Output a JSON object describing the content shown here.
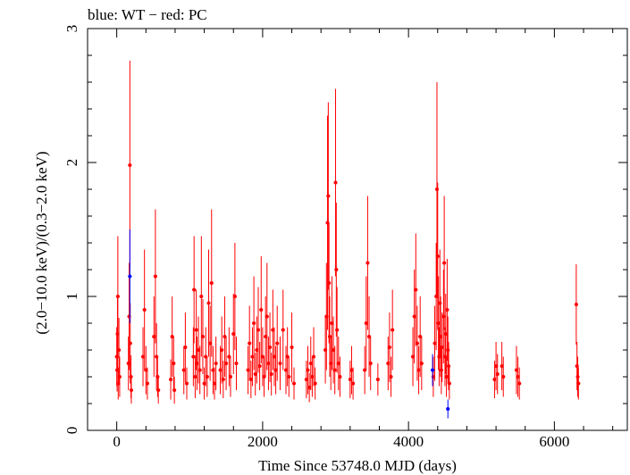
{
  "chart_data": {
    "type": "scatter",
    "title": "blue: WT − red: PC",
    "xlabel": "Time Since 53748.0 MJD (days)",
    "ylabel": "(2.0−10.0 keV)/(0.3−2.0 keV)",
    "xlim": [
      -400,
      7000
    ],
    "ylim": [
      0,
      3
    ],
    "xticks": [
      0,
      2000,
      4000,
      6000
    ],
    "xtick_labels": [
      "0",
      "2000",
      "4000",
      "6000"
    ],
    "yticks": [
      0,
      1,
      2,
      3
    ],
    "ytick_labels": [
      "0",
      "1",
      "2",
      "3"
    ],
    "grid": false,
    "legend": "none",
    "series": [
      {
        "name": "WT",
        "color": "#0000ff",
        "points": [
          [
            180,
            1.15,
            0.35
          ],
          [
            4540,
            0.16,
            0.07
          ],
          [
            4330,
            0.45,
            0.12
          ]
        ]
      },
      {
        "name": "PC",
        "color": "#ff0000",
        "points": [
          [
            0,
            0.55,
            0.22
          ],
          [
            5,
            0.45,
            0.16
          ],
          [
            10,
            0.72,
            0.28
          ],
          [
            15,
            1.0,
            0.45
          ],
          [
            20,
            0.35,
            0.12
          ],
          [
            30,
            0.6,
            0.24
          ],
          [
            40,
            0.4,
            0.15
          ],
          [
            160,
            0.5,
            0.2
          ],
          [
            170,
            0.85,
            0.4
          ],
          [
            180,
            1.98,
            0.78
          ],
          [
            185,
            0.65,
            0.3
          ],
          [
            195,
            0.4,
            0.16
          ],
          [
            200,
            0.3,
            0.1
          ],
          [
            360,
            0.55,
            0.22
          ],
          [
            380,
            0.9,
            0.45
          ],
          [
            400,
            0.45,
            0.18
          ],
          [
            420,
            0.35,
            0.12
          ],
          [
            510,
            0.7,
            0.3
          ],
          [
            530,
            1.15,
            0.5
          ],
          [
            545,
            0.55,
            0.25
          ],
          [
            560,
            0.4,
            0.15
          ],
          [
            570,
            0.3,
            0.1
          ],
          [
            740,
            0.38,
            0.15
          ],
          [
            760,
            0.7,
            0.3
          ],
          [
            780,
            0.5,
            0.2
          ],
          [
            790,
            0.3,
            0.1
          ],
          [
            920,
            0.45,
            0.18
          ],
          [
            940,
            0.62,
            0.26
          ],
          [
            960,
            0.35,
            0.12
          ],
          [
            1050,
            0.55,
            0.22
          ],
          [
            1060,
            1.05,
            0.4
          ],
          [
            1075,
            0.4,
            0.16
          ],
          [
            1090,
            0.75,
            0.3
          ],
          [
            1100,
            0.5,
            0.2
          ],
          [
            1120,
            0.6,
            0.25
          ],
          [
            1140,
            0.45,
            0.18
          ],
          [
            1160,
            1.0,
            0.45
          ],
          [
            1180,
            0.7,
            0.28
          ],
          [
            1200,
            0.35,
            0.12
          ],
          [
            1220,
            0.55,
            0.22
          ],
          [
            1240,
            0.4,
            0.15
          ],
          [
            1260,
            0.95,
            0.4
          ],
          [
            1280,
            0.65,
            0.28
          ],
          [
            1300,
            1.1,
            0.55
          ],
          [
            1320,
            0.45,
            0.18
          ],
          [
            1340,
            0.35,
            0.12
          ],
          [
            1360,
            0.5,
            0.2
          ],
          [
            1420,
            0.45,
            0.18
          ],
          [
            1440,
            0.6,
            0.25
          ],
          [
            1460,
            0.38,
            0.14
          ],
          [
            1480,
            0.7,
            0.3
          ],
          [
            1500,
            0.5,
            0.2
          ],
          [
            1540,
            0.55,
            0.22
          ],
          [
            1560,
            0.4,
            0.15
          ],
          [
            1600,
            0.72,
            0.3
          ],
          [
            1620,
            1.0,
            0.4
          ],
          [
            1640,
            0.5,
            0.2
          ],
          [
            1800,
            0.45,
            0.18
          ],
          [
            1820,
            0.65,
            0.28
          ],
          [
            1840,
            0.38,
            0.14
          ],
          [
            1860,
            0.55,
            0.22
          ],
          [
            1880,
            0.8,
            0.35
          ],
          [
            1900,
            0.42,
            0.16
          ],
          [
            1920,
            0.6,
            0.25
          ],
          [
            1940,
            0.75,
            0.32
          ],
          [
            1960,
            0.48,
            0.18
          ],
          [
            1980,
            0.9,
            0.4
          ],
          [
            2000,
            0.55,
            0.22
          ],
          [
            2020,
            0.4,
            0.15
          ],
          [
            2040,
            0.7,
            0.3
          ],
          [
            2060,
            0.85,
            0.4
          ],
          [
            2080,
            0.5,
            0.2
          ],
          [
            2100,
            0.62,
            0.26
          ],
          [
            2120,
            0.42,
            0.16
          ],
          [
            2140,
            0.75,
            0.3
          ],
          [
            2160,
            0.55,
            0.22
          ],
          [
            2180,
            0.45,
            0.18
          ],
          [
            2200,
            0.65,
            0.28
          ],
          [
            2240,
            0.5,
            0.2
          ],
          [
            2280,
            0.75,
            0.3
          ],
          [
            2320,
            0.45,
            0.18
          ],
          [
            2340,
            0.55,
            0.22
          ],
          [
            2360,
            0.4,
            0.15
          ],
          [
            2400,
            0.62,
            0.26
          ],
          [
            2430,
            0.35,
            0.12
          ],
          [
            2600,
            0.38,
            0.14
          ],
          [
            2620,
            0.45,
            0.18
          ],
          [
            2640,
            0.32,
            0.11
          ],
          [
            2660,
            0.5,
            0.2
          ],
          [
            2680,
            0.4,
            0.15
          ],
          [
            2700,
            0.55,
            0.22
          ],
          [
            2720,
            0.35,
            0.12
          ],
          [
            2860,
            0.6,
            0.25
          ],
          [
            2875,
            0.85,
            0.4
          ],
          [
            2890,
            1.55,
            0.8
          ],
          [
            2900,
            1.75,
            0.7
          ],
          [
            2910,
            1.1,
            0.45
          ],
          [
            2920,
            0.7,
            0.3
          ],
          [
            2935,
            0.5,
            0.2
          ],
          [
            2950,
            0.8,
            0.35
          ],
          [
            2970,
            0.6,
            0.25
          ],
          [
            2990,
            0.45,
            0.18
          ],
          [
            3000,
            1.85,
            0.7
          ],
          [
            3010,
            1.2,
            0.5
          ],
          [
            3020,
            0.75,
            0.32
          ],
          [
            3040,
            0.5,
            0.2
          ],
          [
            3060,
            0.4,
            0.15
          ],
          [
            3200,
            0.38,
            0.14
          ],
          [
            3220,
            0.45,
            0.18
          ],
          [
            3240,
            0.35,
            0.12
          ],
          [
            3400,
            0.45,
            0.18
          ],
          [
            3420,
            0.8,
            0.35
          ],
          [
            3440,
            1.25,
            0.5
          ],
          [
            3460,
            0.7,
            0.3
          ],
          [
            3480,
            0.5,
            0.2
          ],
          [
            3580,
            0.38,
            0.12
          ],
          [
            3720,
            0.5,
            0.2
          ],
          [
            3740,
            0.62,
            0.26
          ],
          [
            3760,
            0.4,
            0.15
          ],
          [
            3780,
            0.75,
            0.3
          ],
          [
            4060,
            0.55,
            0.22
          ],
          [
            4080,
            0.85,
            0.35
          ],
          [
            4100,
            1.05,
            0.42
          ],
          [
            4120,
            0.65,
            0.28
          ],
          [
            4140,
            0.45,
            0.18
          ],
          [
            4160,
            0.7,
            0.3
          ],
          [
            4180,
            0.5,
            0.2
          ],
          [
            4340,
            0.4,
            0.15
          ],
          [
            4360,
            0.65,
            0.28
          ],
          [
            4380,
            1.0,
            0.4
          ],
          [
            4390,
            1.8,
            0.8
          ],
          [
            4400,
            1.3,
            0.55
          ],
          [
            4410,
            0.8,
            0.35
          ],
          [
            4420,
            0.55,
            0.22
          ],
          [
            4430,
            0.95,
            0.4
          ],
          [
            4440,
            0.7,
            0.3
          ],
          [
            4450,
            0.45,
            0.18
          ],
          [
            4460,
            0.62,
            0.26
          ],
          [
            4480,
            0.85,
            0.35
          ],
          [
            4490,
            1.25,
            0.5
          ],
          [
            4500,
            0.55,
            0.22
          ],
          [
            4510,
            0.72,
            0.3
          ],
          [
            4520,
            0.4,
            0.15
          ],
          [
            4530,
            0.9,
            0.38
          ],
          [
            4540,
            0.6,
            0.25
          ],
          [
            4550,
            0.48,
            0.18
          ],
          [
            4560,
            0.35,
            0.12
          ],
          [
            5180,
            0.38,
            0.14
          ],
          [
            5200,
            0.48,
            0.18
          ],
          [
            5220,
            0.42,
            0.15
          ],
          [
            5280,
            0.48,
            0.18
          ],
          [
            5300,
            0.4,
            0.15
          ],
          [
            5480,
            0.45,
            0.18
          ],
          [
            5500,
            0.4,
            0.15
          ],
          [
            5520,
            0.35,
            0.12
          ],
          [
            6300,
            0.94,
            0.3
          ],
          [
            6310,
            0.48,
            0.18
          ],
          [
            6320,
            0.4,
            0.15
          ],
          [
            6330,
            0.35,
            0.12
          ]
        ]
      }
    ]
  }
}
